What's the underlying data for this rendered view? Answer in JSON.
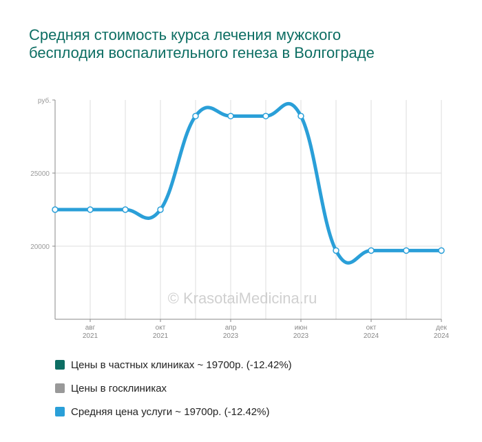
{
  "chart_data": {
    "type": "line",
    "title": "Средняя стоимость курса лечения мужского бесплодия воспалительного генеза в Волгограде",
    "y_unit_label": "руб.",
    "y_ticks": [
      20000,
      25000
    ],
    "ylim": [
      15000,
      30000
    ],
    "x_ticks": [
      {
        "month": "авг",
        "year": "2021"
      },
      {
        "month": "окт",
        "year": "2021"
      },
      {
        "month": "апр",
        "year": "2023"
      },
      {
        "month": "июн",
        "year": "2023"
      },
      {
        "month": "окт",
        "year": "2024"
      },
      {
        "month": "дек",
        "year": "2024"
      }
    ],
    "watermark": "© KrasotaiMedicina.ru",
    "series": [
      {
        "name": "Средняя цена услуги",
        "color": "#2a9fd8",
        "values": [
          22500,
          22500,
          22500,
          22500,
          28900,
          28900,
          28900,
          28900,
          19700,
          19700,
          19700,
          19700
        ]
      }
    ],
    "legend": [
      {
        "label": "Цены в частных клиниках ~ 19700р. (-12.42%)",
        "color": "#0d6e63"
      },
      {
        "label": "Цены в госклиниках",
        "color": "#999999"
      },
      {
        "label": "Средняя цена услуги ~ 19700р. (-12.42%)",
        "color": "#2a9fd8"
      }
    ],
    "grid": true,
    "legend_position": "bottom"
  }
}
